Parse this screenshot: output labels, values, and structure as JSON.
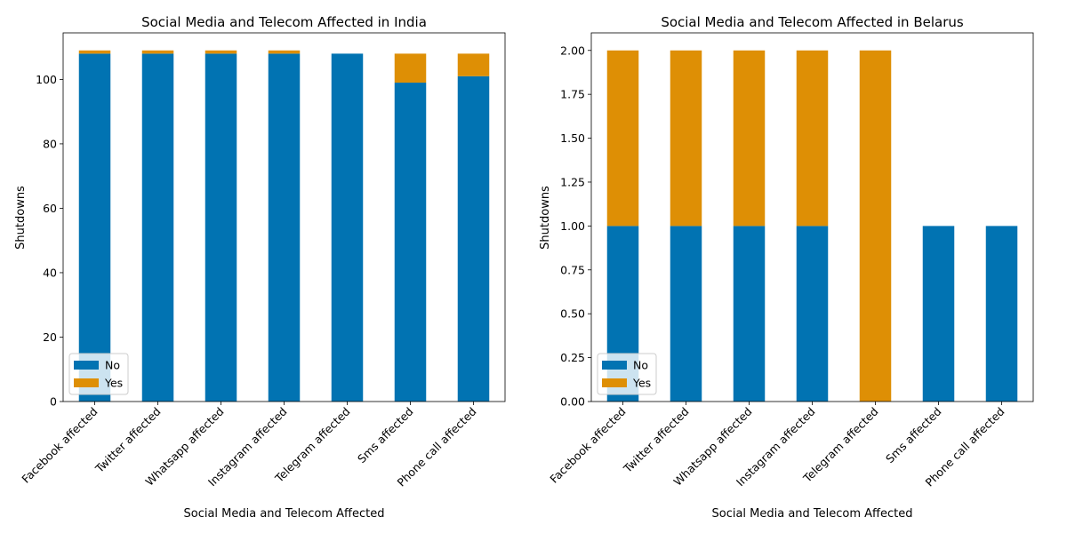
{
  "chart_data": [
    {
      "type": "bar",
      "stacked": true,
      "title": "Social Media and Telecom Affected in India",
      "xlabel": "Social Media and Telecom Affected",
      "ylabel": "Shutdowns",
      "categories": [
        "Facebook affected",
        "Twitter affected",
        "Whatsapp affected",
        "Instagram affected",
        "Telegram affected",
        "Sms affected",
        "Phone call affected"
      ],
      "series": [
        {
          "name": "No",
          "color": "#0173b2",
          "values": [
            108,
            108,
            108,
            108,
            108,
            99,
            101
          ]
        },
        {
          "name": "Yes",
          "color": "#de8f05",
          "values": [
            1,
            1,
            1,
            1,
            0,
            9,
            7
          ]
        }
      ],
      "ylim": [
        0,
        114.45
      ],
      "yticks": [
        0,
        20,
        40,
        60,
        80,
        100
      ],
      "ytick_labels": [
        "0",
        "20",
        "40",
        "60",
        "80",
        "100"
      ],
      "legend": "lower-left",
      "grid": false
    },
    {
      "type": "bar",
      "stacked": true,
      "title": "Social Media and Telecom Affected in Belarus",
      "xlabel": "Social Media and Telecom Affected",
      "ylabel": "Shutdowns",
      "categories": [
        "Facebook affected",
        "Twitter affected",
        "Whatsapp affected",
        "Instagram affected",
        "Telegram affected",
        "Sms affected",
        "Phone call affected"
      ],
      "series": [
        {
          "name": "No",
          "color": "#0173b2",
          "values": [
            1,
            1,
            1,
            1,
            0,
            1,
            1
          ]
        },
        {
          "name": "Yes",
          "color": "#de8f05",
          "values": [
            1,
            1,
            1,
            1,
            2,
            0,
            0
          ]
        }
      ],
      "ylim": [
        0,
        2.1
      ],
      "yticks": [
        0,
        0.25,
        0.5,
        0.75,
        1,
        1.25,
        1.5,
        1.75,
        2
      ],
      "ytick_labels": [
        "0.00",
        "0.25",
        "0.50",
        "0.75",
        "1.00",
        "1.25",
        "1.50",
        "1.75",
        "2.00"
      ],
      "legend": "lower-left",
      "grid": false
    }
  ]
}
